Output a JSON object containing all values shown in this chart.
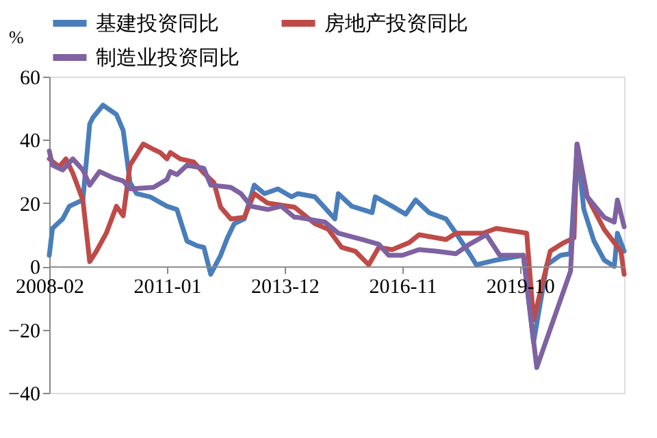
{
  "chart_data": {
    "type": "line",
    "ylabel": "%",
    "legend": "top",
    "grid": false,
    "marker": "none",
    "line_style": "solid",
    "xlim": [
      "2008-02",
      "2022-05"
    ],
    "xticks": [
      "2008-02",
      "2011-01",
      "2013-12",
      "2016-11",
      "2019-10"
    ],
    "ylim": [
      -40,
      60
    ],
    "yticks": [
      -40,
      -20,
      0,
      20,
      40,
      60
    ],
    "series": [
      {
        "name": "基建投资同比",
        "color": "#4a7ebb",
        "x": [
          "2008-02",
          "2008-03",
          "2008-06",
          "2008-08",
          "2008-12",
          "2009-02",
          "2009-03",
          "2009-06",
          "2009-10",
          "2009-12",
          "2010-02",
          "2010-04",
          "2010-08",
          "2011-01",
          "2011-04",
          "2011-07",
          "2011-10",
          "2011-12",
          "2012-02",
          "2012-05",
          "2012-07",
          "2012-09",
          "2012-12",
          "2013-03",
          "2013-06",
          "2013-10",
          "2014-02",
          "2014-04",
          "2014-09",
          "2015-03",
          "2015-04",
          "2015-08",
          "2016-02",
          "2016-03",
          "2016-08",
          "2016-12",
          "2017-03",
          "2017-07",
          "2017-12",
          "2018-03",
          "2018-07",
          "2018-09",
          "2019-03",
          "2019-11",
          "2020-02",
          "2020-06",
          "2020-10",
          "2021-01",
          "2021-03",
          "2021-05",
          "2021-08",
          "2021-11",
          "2022-02",
          "2022-03",
          "2022-05"
        ],
        "values": [
          3.5,
          12,
          15,
          19,
          21,
          45,
          47,
          51,
          48,
          43,
          26.5,
          23,
          22,
          19,
          18,
          8,
          6.5,
          6,
          -2.5,
          3.5,
          9,
          13.5,
          15,
          25.7,
          23,
          24.5,
          22,
          23,
          22,
          15,
          23,
          19,
          17,
          22,
          19,
          16.5,
          21,
          17,
          15,
          10.5,
          4,
          0.5,
          2,
          3.5,
          -24,
          0.5,
          3.5,
          4,
          38,
          18,
          8,
          2,
          0,
          10.5,
          4.8
        ]
      },
      {
        "name": "房地产投资同比",
        "color": "#be4b48",
        "x": [
          "2008-02",
          "2008-05",
          "2008-07",
          "2008-09",
          "2008-12",
          "2009-02",
          "2009-04",
          "2009-07",
          "2009-10",
          "2009-12",
          "2010-02",
          "2010-06",
          "2010-09",
          "2010-11",
          "2011-01",
          "2011-02",
          "2011-05",
          "2011-09",
          "2011-12",
          "2012-03",
          "2012-05",
          "2012-08",
          "2012-12",
          "2013-03",
          "2013-07",
          "2014-03",
          "2014-09",
          "2015-01",
          "2015-05",
          "2015-09",
          "2016-01",
          "2016-04",
          "2016-08",
          "2017-01",
          "2017-04",
          "2017-12",
          "2018-03",
          "2018-11",
          "2019-03",
          "2019-12",
          "2020-02",
          "2020-07",
          "2020-11",
          "2021-02",
          "2021-03",
          "2021-06",
          "2021-11",
          "2022-04",
          "2022-05"
        ],
        "values": [
          34,
          31.5,
          34,
          29.5,
          21,
          1.5,
          4.7,
          10.5,
          19,
          16,
          32,
          38.7,
          37,
          36,
          34,
          36,
          34,
          33,
          29.5,
          26.5,
          18.7,
          15,
          15.5,
          23,
          20,
          18.7,
          13.5,
          11.7,
          6,
          4.8,
          0.5,
          6,
          5.3,
          7.5,
          10,
          8.5,
          10.5,
          10.5,
          12,
          10.5,
          -17,
          4.8,
          7.5,
          9,
          38.7,
          22,
          11.7,
          4.8,
          -2.5
        ]
      },
      {
        "name": "制造业投资同比",
        "color": "#7e62a1",
        "x": [
          "2008-02",
          "2008-03",
          "2008-06",
          "2008-09",
          "2008-12",
          "2009-02",
          "2009-05",
          "2009-09",
          "2009-12",
          "2010-02",
          "2010-09",
          "2011-01",
          "2011-02",
          "2011-04",
          "2011-07",
          "2011-12",
          "2012-02",
          "2012-08",
          "2012-11",
          "2013-02",
          "2013-07",
          "2013-11",
          "2014-03",
          "2014-04",
          "2014-12",
          "2015-04",
          "2015-11",
          "2016-04",
          "2016-07",
          "2016-11",
          "2017-04",
          "2017-09",
          "2018-03",
          "2018-07",
          "2018-12",
          "2019-04",
          "2019-11",
          "2020-03",
          "2021-01",
          "2021-03",
          "2021-06",
          "2021-11",
          "2022-02",
          "2022-03",
          "2022-05"
        ],
        "values": [
          36.5,
          32,
          30.5,
          34,
          30.5,
          25.7,
          30,
          28,
          27,
          24.5,
          25,
          27.5,
          30,
          29,
          32,
          31,
          25.7,
          25,
          23,
          19,
          18,
          19,
          15.5,
          15.5,
          14,
          10.5,
          8.5,
          7,
          3.5,
          3.5,
          5.3,
          4.8,
          4,
          7,
          10,
          3.5,
          3.5,
          -32,
          -1.5,
          38.7,
          22,
          15.5,
          14,
          21,
          12.5
        ]
      }
    ]
  }
}
